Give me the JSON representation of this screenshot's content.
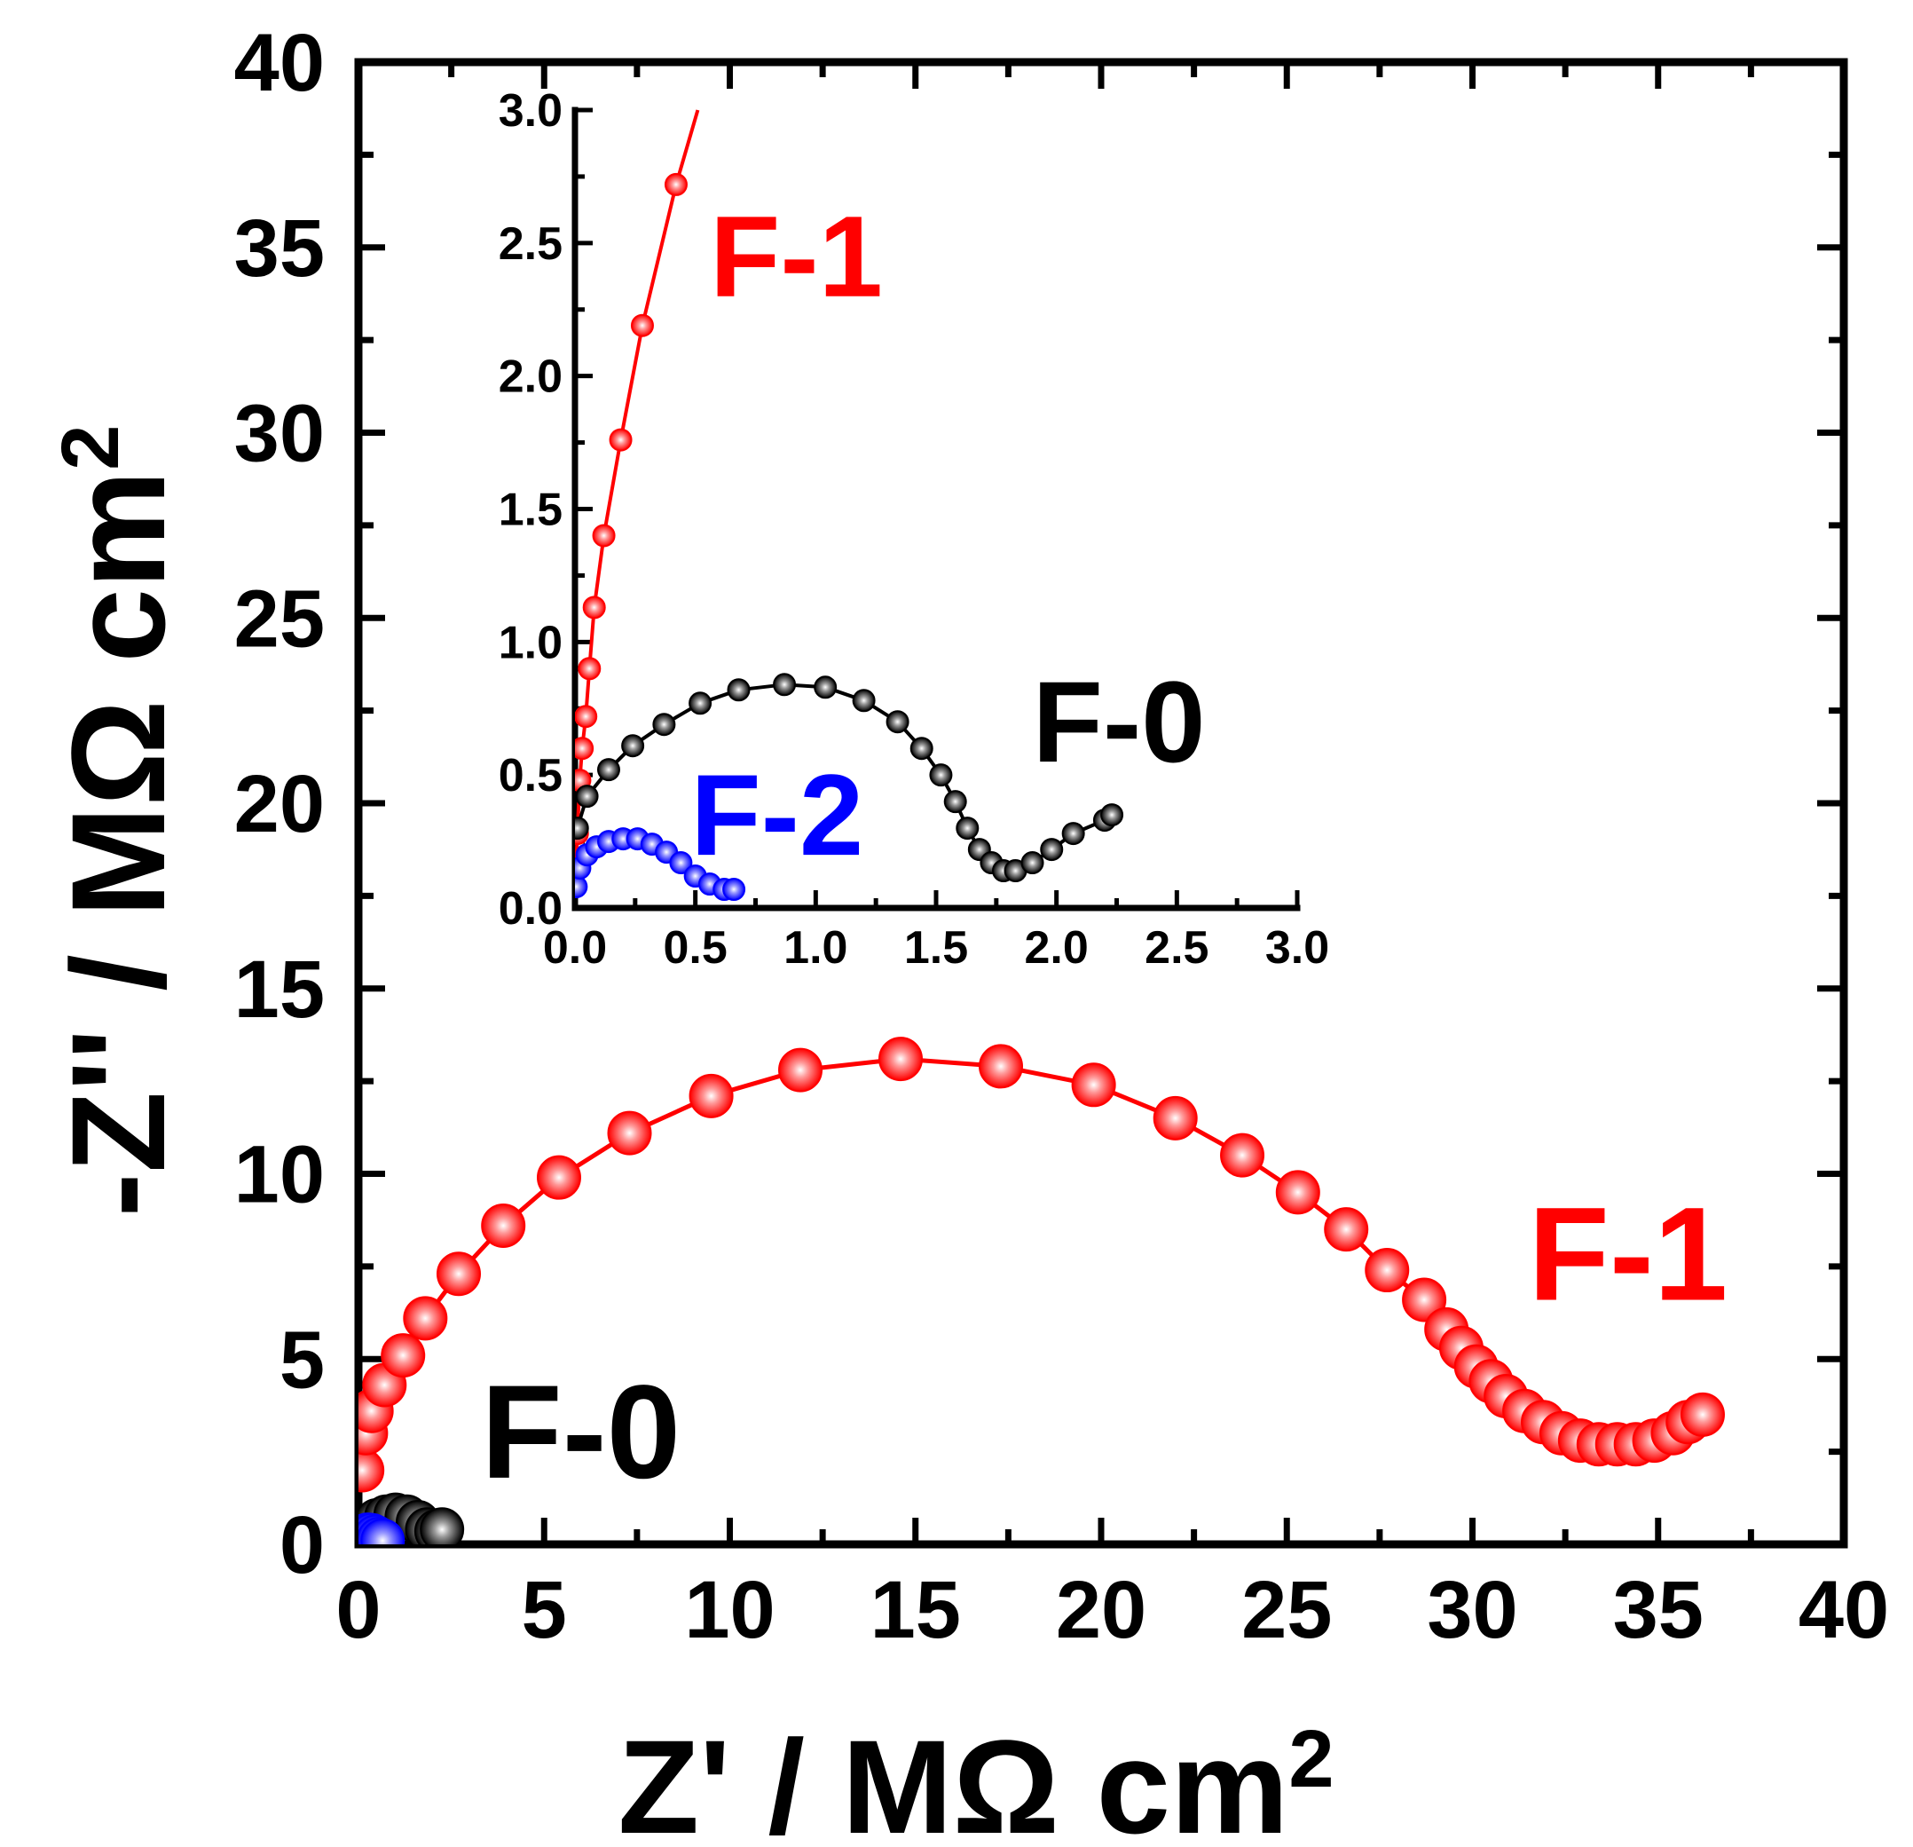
{
  "chart_data": [
    {
      "id": "main",
      "type": "scatter",
      "xlabel_prefix": "Z' / MΩ cm",
      "ylabel_prefix": "-Z'' / MΩ cm",
      "unit_superscript": "2",
      "xlim": [
        0,
        40
      ],
      "ylim": [
        0,
        40
      ],
      "xticks": [
        "0",
        "5",
        "10",
        "15",
        "20",
        "25",
        "30",
        "35",
        "40"
      ],
      "yticks": [
        "0",
        "5",
        "10",
        "15",
        "20",
        "25",
        "30",
        "35",
        "40"
      ],
      "series": [
        {
          "name": "F-0",
          "color": "#000000",
          "points": [
            [
              0.05,
              0.15
            ],
            [
              0.15,
              0.35
            ],
            [
              0.3,
              0.5
            ],
            [
              0.5,
              0.65
            ],
            [
              0.75,
              0.75
            ],
            [
              1.0,
              0.8
            ],
            [
              1.3,
              0.75
            ],
            [
              1.6,
              0.6
            ],
            [
              1.85,
              0.4
            ],
            [
              2.1,
              0.35
            ],
            [
              2.25,
              0.4
            ]
          ]
        },
        {
          "name": "F-2",
          "color": "#0000ff",
          "points": [
            [
              0.02,
              0.05
            ],
            [
              0.08,
              0.15
            ],
            [
              0.15,
              0.22
            ],
            [
              0.25,
              0.26
            ],
            [
              0.35,
              0.25
            ],
            [
              0.45,
              0.2
            ],
            [
              0.55,
              0.14
            ],
            [
              0.65,
              0.1
            ]
          ]
        },
        {
          "name": "F-1",
          "color": "#ff0000",
          "points": [
            [
              0.1,
              2.0
            ],
            [
              0.2,
              3.0
            ],
            [
              0.35,
              3.6
            ],
            [
              0.7,
              4.3
            ],
            [
              1.2,
              5.1
            ],
            [
              1.8,
              6.1
            ],
            [
              2.7,
              7.3
            ],
            [
              3.9,
              8.6
            ],
            [
              5.4,
              9.9
            ],
            [
              7.3,
              11.1
            ],
            [
              9.5,
              12.1
            ],
            [
              11.9,
              12.8
            ],
            [
              14.6,
              13.1
            ],
            [
              17.3,
              12.9
            ],
            [
              19.8,
              12.4
            ],
            [
              22.0,
              11.5
            ],
            [
              23.8,
              10.5
            ],
            [
              25.3,
              9.5
            ],
            [
              26.6,
              8.5
            ],
            [
              27.7,
              7.4
            ],
            [
              28.7,
              6.6
            ],
            [
              29.3,
              5.8
            ],
            [
              29.7,
              5.3
            ],
            [
              30.1,
              4.8
            ],
            [
              30.5,
              4.4
            ],
            [
              30.9,
              4.0
            ],
            [
              31.4,
              3.6
            ],
            [
              31.9,
              3.3
            ],
            [
              32.4,
              3.0
            ],
            [
              32.9,
              2.8
            ],
            [
              33.4,
              2.7
            ],
            [
              33.9,
              2.7
            ],
            [
              34.4,
              2.7
            ],
            [
              34.9,
              2.8
            ],
            [
              35.4,
              3.0
            ],
            [
              35.8,
              3.3
            ],
            [
              36.2,
              3.5
            ]
          ]
        }
      ],
      "labels": [
        {
          "text": "F-0",
          "color": "#000000",
          "x": 3.3,
          "y": 1.8
        },
        {
          "text": "F-1",
          "color": "#ff0000",
          "x": 31.5,
          "y": 6.6
        }
      ]
    },
    {
      "id": "inset",
      "type": "scatter",
      "xlim": [
        0,
        3.0
      ],
      "ylim": [
        0,
        3.0
      ],
      "xticks": [
        "0.0",
        "0.5",
        "1.0",
        "1.5",
        "2.0",
        "2.5",
        "3.0"
      ],
      "yticks": [
        "0.0",
        "0.5",
        "1.0",
        "1.5",
        "2.0",
        "2.5",
        "3.0"
      ],
      "series": [
        {
          "name": "F-1",
          "color": "#ff0000",
          "points": [
            [
              0.005,
              0.15
            ],
            [
              0.01,
              0.28
            ],
            [
              0.02,
              0.48
            ],
            [
              0.03,
              0.6
            ],
            [
              0.045,
              0.72
            ],
            [
              0.06,
              0.9
            ],
            [
              0.08,
              1.13
            ],
            [
              0.12,
              1.4
            ],
            [
              0.19,
              1.76
            ],
            [
              0.28,
              2.19
            ],
            [
              0.42,
              2.72
            ]
          ],
          "line_extension": [
            0.51,
            3.0
          ]
        },
        {
          "name": "F-0",
          "color": "#000000",
          "points": [
            [
              0.01,
              0.3
            ],
            [
              0.05,
              0.42
            ],
            [
              0.14,
              0.52
            ],
            [
              0.24,
              0.61
            ],
            [
              0.37,
              0.69
            ],
            [
              0.52,
              0.77
            ],
            [
              0.68,
              0.82
            ],
            [
              0.87,
              0.84
            ],
            [
              1.04,
              0.83
            ],
            [
              1.2,
              0.78
            ],
            [
              1.34,
              0.7
            ],
            [
              1.44,
              0.6
            ],
            [
              1.52,
              0.5
            ],
            [
              1.58,
              0.4
            ],
            [
              1.63,
              0.3
            ],
            [
              1.68,
              0.22
            ],
            [
              1.73,
              0.17
            ],
            [
              1.78,
              0.14
            ],
            [
              1.83,
              0.14
            ],
            [
              1.9,
              0.17
            ],
            [
              1.98,
              0.22
            ],
            [
              2.07,
              0.28
            ],
            [
              2.2,
              0.33
            ],
            [
              2.23,
              0.35
            ]
          ]
        },
        {
          "name": "F-2",
          "color": "#0000ff",
          "points": [
            [
              0.005,
              0.08
            ],
            [
              0.02,
              0.15
            ],
            [
              0.05,
              0.2
            ],
            [
              0.09,
              0.23
            ],
            [
              0.14,
              0.25
            ],
            [
              0.2,
              0.26
            ],
            [
              0.26,
              0.26
            ],
            [
              0.32,
              0.24
            ],
            [
              0.38,
              0.21
            ],
            [
              0.44,
              0.17
            ],
            [
              0.5,
              0.12
            ],
            [
              0.56,
              0.09
            ],
            [
              0.62,
              0.07
            ],
            [
              0.66,
              0.07
            ]
          ]
        }
      ],
      "labels": [
        {
          "text": "F-1",
          "color": "#ff0000",
          "x": 0.56,
          "y": 2.3
        },
        {
          "text": "F-0",
          "color": "#000000",
          "x": 1.9,
          "y": 0.55
        },
        {
          "text": "F-2",
          "color": "#0000ff",
          "x": 0.48,
          "y": 0.2
        }
      ]
    }
  ]
}
